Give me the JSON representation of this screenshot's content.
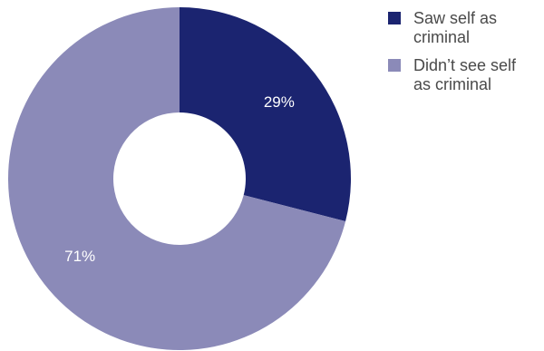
{
  "colors": {
    "saw_self": "#1b2470",
    "didnt_see_self": "#8b8ab8",
    "label_on_dark": "#ffffff",
    "label_on_light": "#ffffff",
    "legend_text": "#4a4a4a"
  },
  "chart_data": {
    "type": "pie",
    "variant": "donut",
    "title": "",
    "slices": [
      {
        "label": "Saw self as criminal",
        "value": 29,
        "display": "29%",
        "color": "#1b2470"
      },
      {
        "label": "Didn’t see self as criminal",
        "value": 71,
        "display": "71%",
        "color": "#8b8ab8"
      }
    ],
    "legend": {
      "placement": "top-right",
      "items": [
        {
          "line1": "Saw self as",
          "line2": "criminal",
          "color": "#1b2470"
        },
        {
          "line1": "Didn’t see self",
          "line2": "as criminal",
          "color": "#8b8ab8"
        }
      ]
    }
  }
}
